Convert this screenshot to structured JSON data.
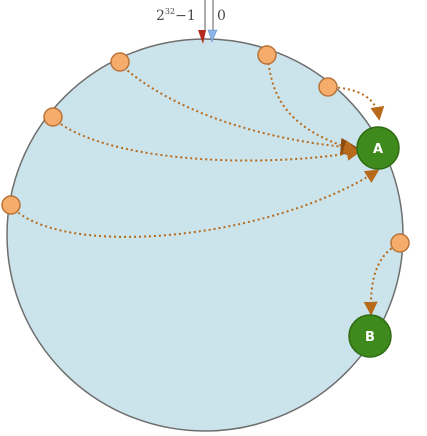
{
  "boundary": {
    "max_base": "2",
    "max_exp": "32",
    "max_suffix": "−1",
    "zero_label": "0"
  },
  "servers": [
    {
      "id": "server-a",
      "label": "A"
    },
    {
      "id": "server-b",
      "label": "B"
    }
  ],
  "keys": [
    {
      "id": "key-1",
      "maps_to": "A"
    },
    {
      "id": "key-2",
      "maps_to": "A"
    },
    {
      "id": "key-3",
      "maps_to": "A"
    },
    {
      "id": "key-4",
      "maps_to": "A"
    },
    {
      "id": "key-5",
      "maps_to": "A"
    },
    {
      "id": "key-6",
      "maps_to": "B"
    }
  ],
  "colors": {
    "ring_fill": "#cbe3ea",
    "ring_stroke": "#6e6e6e",
    "server_fill": "#3f8a1c",
    "server_stroke": "#2f6b12",
    "key_fill": "#f6ad6b",
    "key_stroke": "#b9733a",
    "arrow": "#b86a1b",
    "pointer_max": "#b52a1e",
    "pointer_zero": "#8ab4e6"
  }
}
